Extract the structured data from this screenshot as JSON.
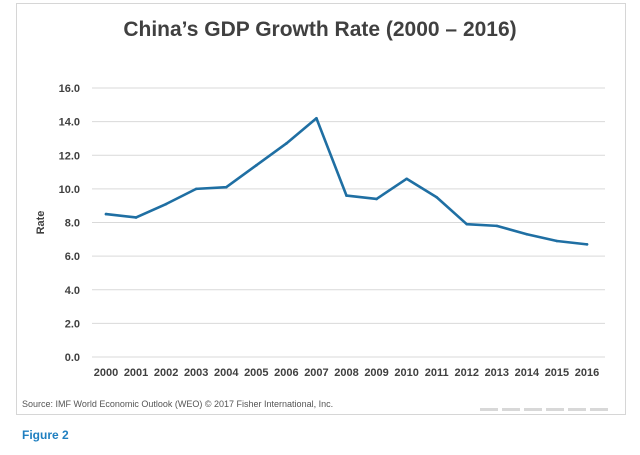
{
  "chart_data": {
    "type": "line",
    "title": "China’s GDP Growth Rate (2000 – 2016)",
    "xlabel": "",
    "ylabel": "Rate",
    "ylim": [
      0,
      16
    ],
    "yticks": [
      "0.0",
      "2.0",
      "4.0",
      "6.0",
      "8.0",
      "10.0",
      "12.0",
      "14.0",
      "16.0"
    ],
    "categories": [
      "2000",
      "2001",
      "2002",
      "2003",
      "2004",
      "2005",
      "2006",
      "2007",
      "2008",
      "2009",
      "2010",
      "2011",
      "2012",
      "2013",
      "2014",
      "2015",
      "2016"
    ],
    "series": [
      {
        "values": [
          8.5,
          8.3,
          9.1,
          10.0,
          10.1,
          11.4,
          12.7,
          14.2,
          9.6,
          9.4,
          10.6,
          9.5,
          7.9,
          7.8,
          7.3,
          6.9,
          6.7
        ]
      }
    ],
    "grid": true,
    "line_color": "#1f6fa3"
  },
  "source": "Source: IMF World Economic Outlook (WEO) © 2017 Fisher International, Inc.",
  "figure_label": "Figure 2"
}
